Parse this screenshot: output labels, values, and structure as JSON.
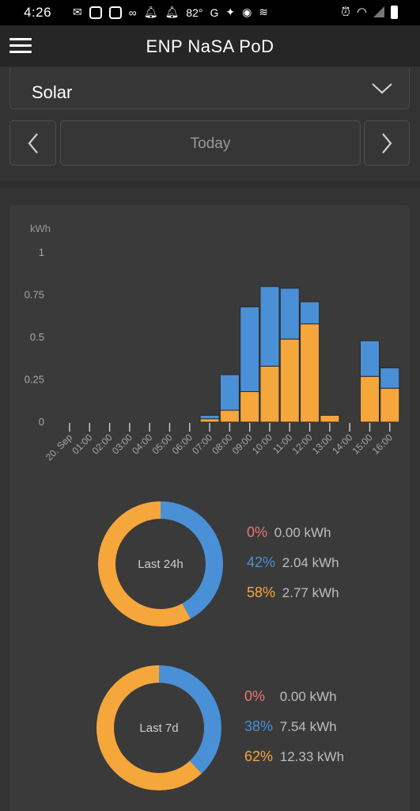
{
  "status_bar": {
    "time": "4:26",
    "temperature": "82°",
    "notification_icons": [
      "messenger-icon",
      "app-d-icon",
      "app-d-icon",
      "voicemail-icon",
      "bell-icon",
      "bell-icon",
      "temperature",
      "g-icon",
      "kite-icon",
      "pin-icon",
      "cast-icon"
    ],
    "right_icons": [
      "alarm-icon",
      "wifi-icon",
      "signal-icon",
      "battery-icon"
    ]
  },
  "app_bar": {
    "title": "ENP NaSA PoD"
  },
  "selector": {
    "value": "Solar"
  },
  "date_nav": {
    "label": "Today"
  },
  "colors": {
    "blue": "#4a90d6",
    "orange": "#f5a73b",
    "red": "#e8777a",
    "background": "#333333",
    "panel": "#3a3a3a"
  },
  "chart_data": {
    "type": "bar",
    "stacked": true,
    "ylabel": "kWh",
    "ylim": [
      0,
      1
    ],
    "yticks": [
      "0",
      "0.25",
      "0.5",
      "0.75",
      "1"
    ],
    "categories": [
      "20. Sep",
      "01:00",
      "02:00",
      "03:00",
      "04:00",
      "05:00",
      "06:00",
      "07:00",
      "08:00",
      "09:00",
      "10:00",
      "11:00",
      "12:00",
      "13:00",
      "14:00",
      "15:00",
      "16:00"
    ],
    "series": [
      {
        "color": "#f5a73b",
        "values": [
          0,
          0,
          0,
          0,
          0,
          0,
          0,
          0.02,
          0.07,
          0.18,
          0.33,
          0.49,
          0.58,
          0.04,
          0,
          0.27,
          0.2
        ]
      },
      {
        "color": "#4a90d6",
        "values": [
          0,
          0,
          0,
          0,
          0,
          0,
          0,
          0.02,
          0.21,
          0.5,
          0.47,
          0.3,
          0.13,
          0,
          0,
          0.21,
          0.12
        ]
      }
    ]
  },
  "summaries": [
    {
      "label": "Last 24h",
      "rows": [
        {
          "pct": "0%",
          "kwh": "0.00 kWh",
          "color": "#e8777a"
        },
        {
          "pct": "42%",
          "kwh": "2.04 kWh",
          "color": "#4a90d6"
        },
        {
          "pct": "58%",
          "kwh": "2.77 kWh",
          "color": "#f5a73b"
        }
      ],
      "blue_fraction": 0.42
    },
    {
      "label": "Last 7d",
      "rows": [
        {
          "pct": "0%",
          "kwh": "0.00 kWh",
          "color": "#e8777a"
        },
        {
          "pct": "38%",
          "kwh": "7.54 kWh",
          "color": "#4a90d6"
        },
        {
          "pct": "62%",
          "kwh": "12.33 kWh",
          "color": "#f5a73b"
        }
      ],
      "blue_fraction": 0.38
    }
  ]
}
